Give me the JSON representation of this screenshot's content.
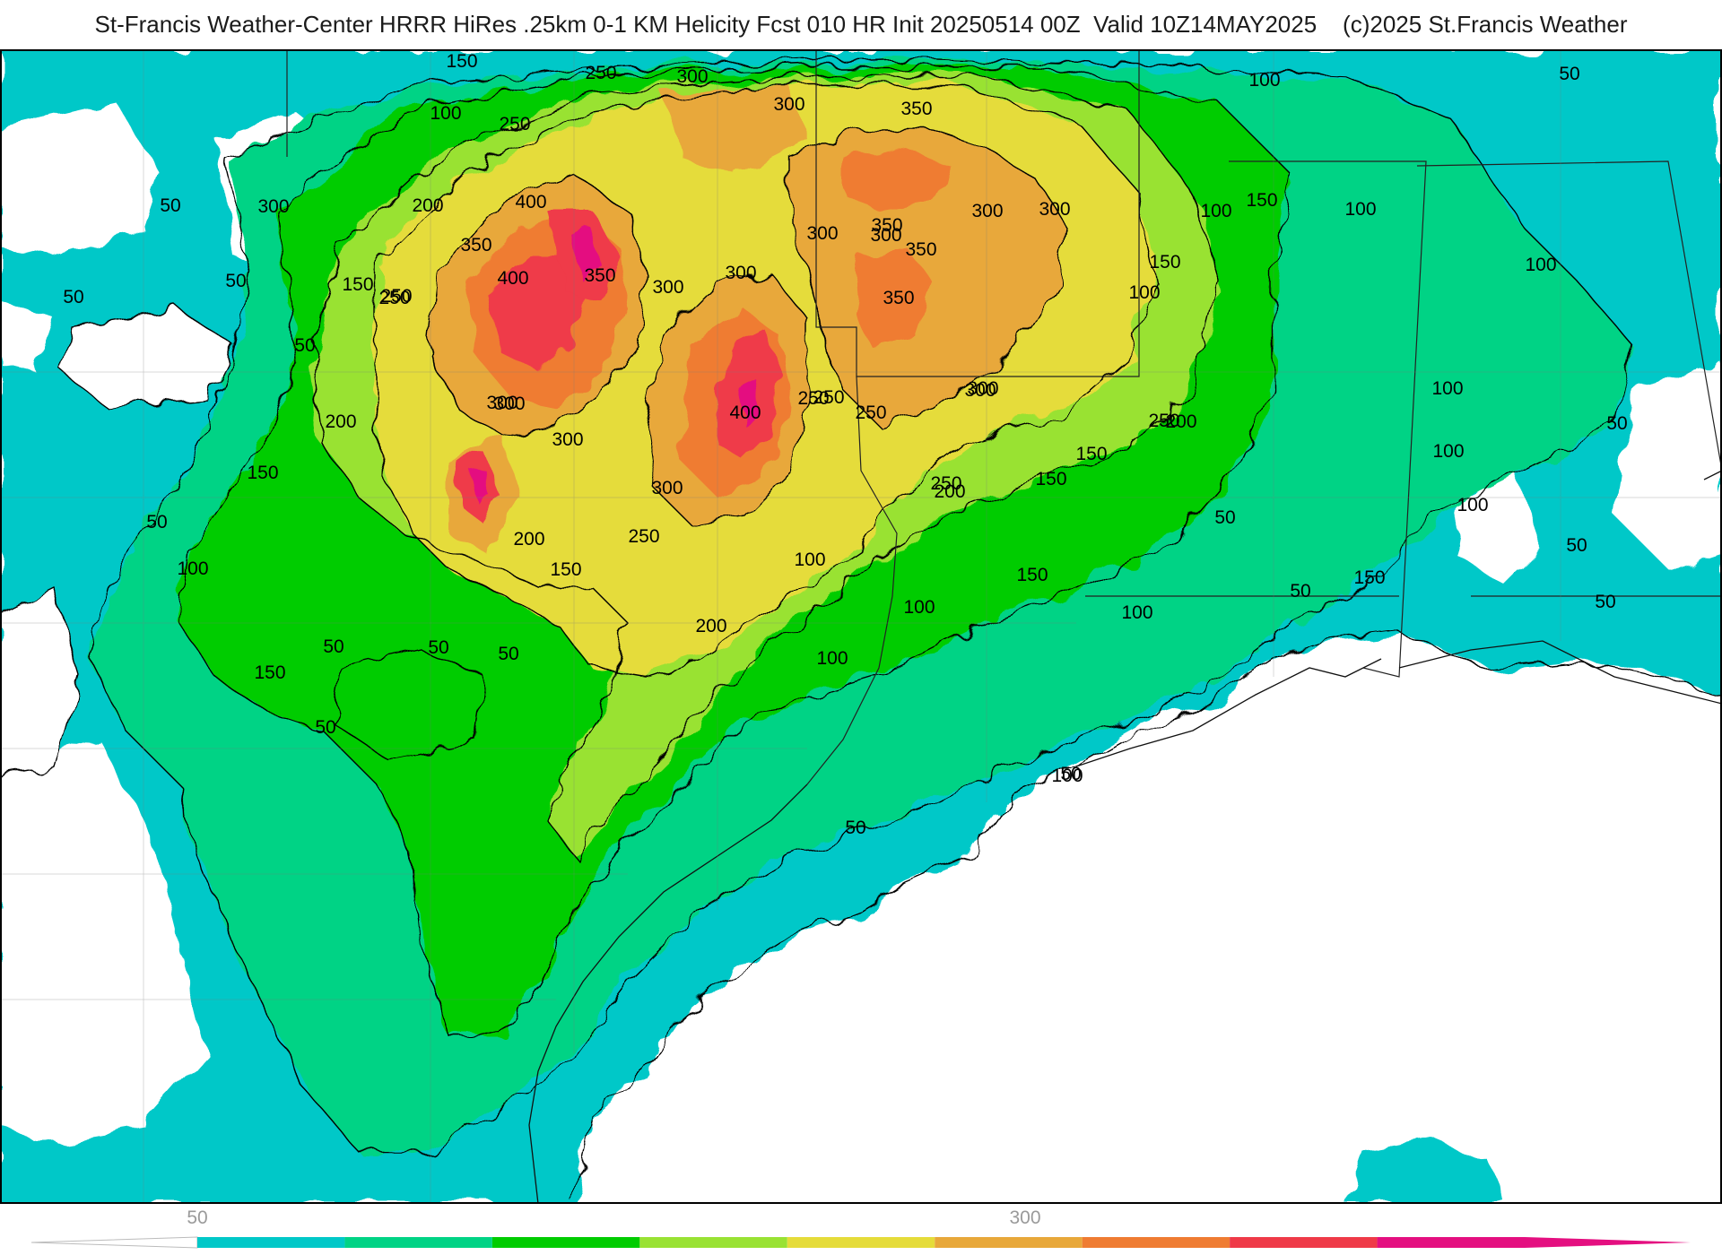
{
  "header": {
    "title": "St-Francis Weather-Center HRRR HiRes .25km 0-1 KM Helicity Fcst 010 HR Init 20250514 00Z  Valid 10Z14MAY2025    (c)2025 St.Francis Weather"
  },
  "palette": {
    "water": "#ffffff",
    "land_base": "#00c8c8",
    "levels": [
      "#00c8c8",
      "#00d385",
      "#00cc00",
      "#99e233",
      "#e5dc3a",
      "#e8a83a",
      "#ef7c32",
      "#ef3a48",
      "#e40f80"
    ],
    "contour": "#000000",
    "boundary": "#7a7a7a",
    "state_line": "#222222"
  },
  "legend": {
    "tick_labels": [
      "50",
      "300"
    ],
    "bins": 9
  },
  "contour_labels": [
    "150",
    "250",
    "300",
    "300",
    "350",
    "100",
    "250",
    "100",
    "50",
    "150",
    "50",
    "300",
    "400",
    "200",
    "100",
    "350",
    "300",
    "300",
    "350",
    "300",
    "300",
    "350",
    "150",
    "400",
    "350",
    "300",
    "300",
    "250",
    "150",
    "250",
    "100",
    "50",
    "50",
    "350",
    "100",
    "50",
    "100",
    "300",
    "250",
    "300",
    "400",
    "250",
    "250",
    "300",
    "200",
    "100",
    "200",
    "300",
    "250",
    "300",
    "50",
    "150",
    "150",
    "300",
    "200",
    "250",
    "100",
    "250",
    "150",
    "200",
    "50",
    "50",
    "150",
    "100",
    "50",
    "150",
    "150",
    "100",
    "100",
    "200",
    "100",
    "50",
    "150",
    "50",
    "100",
    "50",
    "100",
    "50",
    "50",
    "50",
    "100",
    "50",
    "50",
    "50"
  ]
}
